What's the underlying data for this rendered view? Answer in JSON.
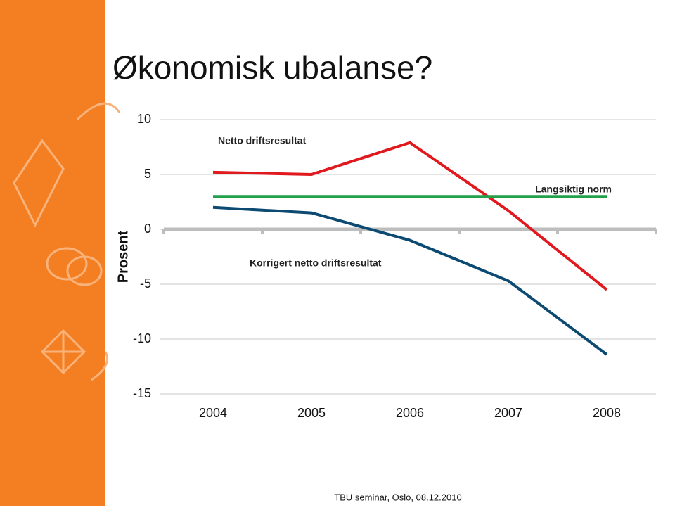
{
  "title": "Økonomisk ubalanse?",
  "footer": "TBU seminar, Oslo, 08.12.2010",
  "chart_data": {
    "type": "line",
    "y_label": "Prosent",
    "categories": [
      "2004",
      "2005",
      "2006",
      "2007",
      "2008"
    ],
    "series": [
      {
        "name": "Netto driftsresultat",
        "color": "#e0191e",
        "values": [
          5.2,
          5.0,
          7.9,
          1.7,
          -5.5
        ]
      },
      {
        "name": "Langsiktig norm",
        "color": "#22a04b",
        "values": [
          3,
          3,
          3,
          3,
          3
        ]
      },
      {
        "name": "Korrigert netto driftsresultat",
        "color": "#0c4a72",
        "values": [
          2.0,
          1.5,
          -1.0,
          -4.7,
          -11.4
        ]
      }
    ],
    "ylim": [
      -15,
      10
    ],
    "yticks": [
      -15,
      -10,
      -5,
      0,
      5,
      10
    ],
    "grid": true
  }
}
